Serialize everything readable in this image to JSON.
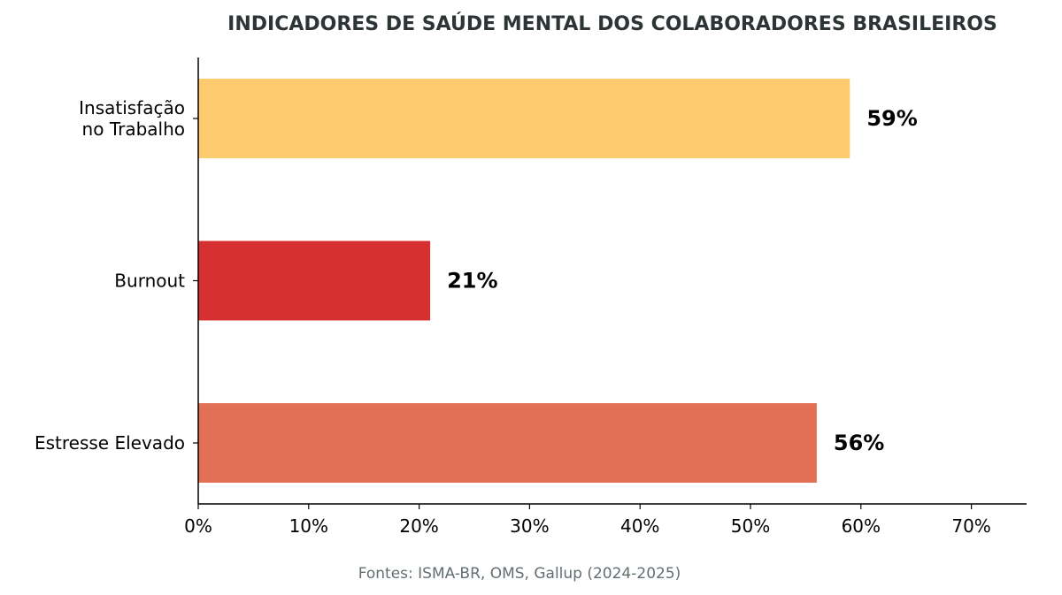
{
  "chart_data": {
    "type": "bar",
    "orientation": "horizontal",
    "title": "INDICADORES DE SAÚDE MENTAL DOS COLABORADORES BRASILEIROS",
    "source": "Fontes: ISMA-BR, OMS, Gallup (2024-2025)",
    "categories": [
      "Estresse Elevado",
      "Burnout",
      "Insatisfação\nno Trabalho"
    ],
    "values": [
      56,
      21,
      59
    ],
    "data_labels": [
      "56%",
      "21%",
      "59%"
    ],
    "colors": [
      "#E17055",
      "#D63031",
      "#FDCB6E"
    ],
    "xlim": [
      0,
      75
    ],
    "xticks": [
      0,
      10,
      20,
      30,
      40,
      50,
      60,
      70
    ],
    "xtick_labels": [
      "0%",
      "10%",
      "20%",
      "30%",
      "40%",
      "50%",
      "60%",
      "70%"
    ],
    "xlabel": "",
    "ylabel": "",
    "grid": false,
    "legend": "none"
  }
}
